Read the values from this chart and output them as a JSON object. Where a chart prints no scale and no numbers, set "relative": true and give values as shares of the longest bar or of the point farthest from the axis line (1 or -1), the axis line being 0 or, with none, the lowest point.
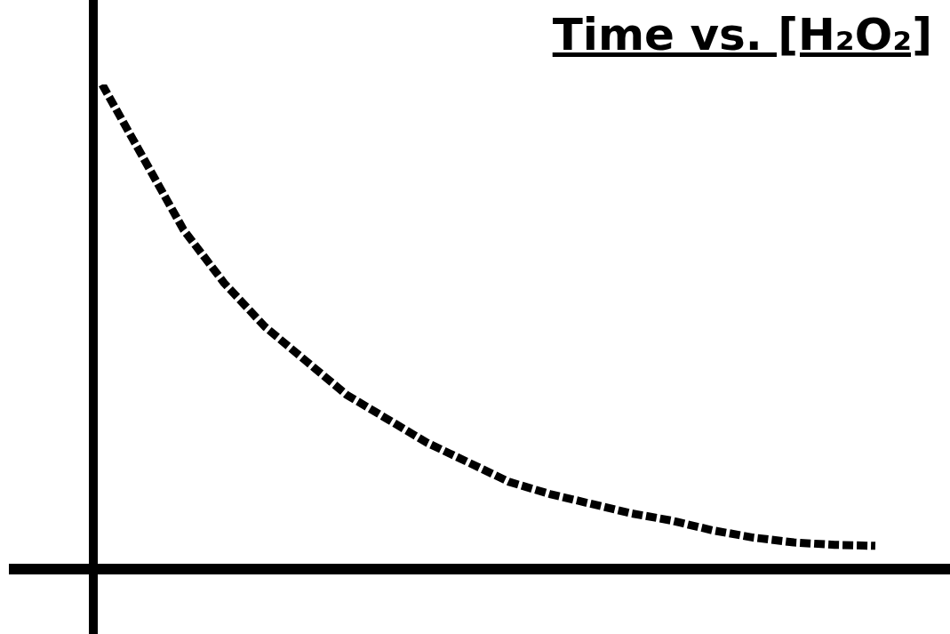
{
  "chart_data": {
    "type": "line",
    "title": "Time vs. [H₂O₂]",
    "relative": true,
    "categories": [
      null,
      null,
      null,
      null,
      null,
      null,
      null,
      null,
      null,
      null,
      null,
      null,
      null,
      null,
      null,
      null,
      null,
      null,
      null,
      null
    ],
    "series": [
      {
        "color": "#000000",
        "values": [
          1.0,
          0.85,
          0.7,
          0.59,
          0.5,
          0.43,
          0.36,
          0.31,
          0.26,
          0.22,
          0.18,
          0.155,
          0.135,
          0.115,
          0.1,
          0.08,
          0.065,
          0.055,
          0.05,
          0.048
        ]
      }
    ],
    "line_style": "dashed",
    "marker": "none",
    "legend": false
  }
}
